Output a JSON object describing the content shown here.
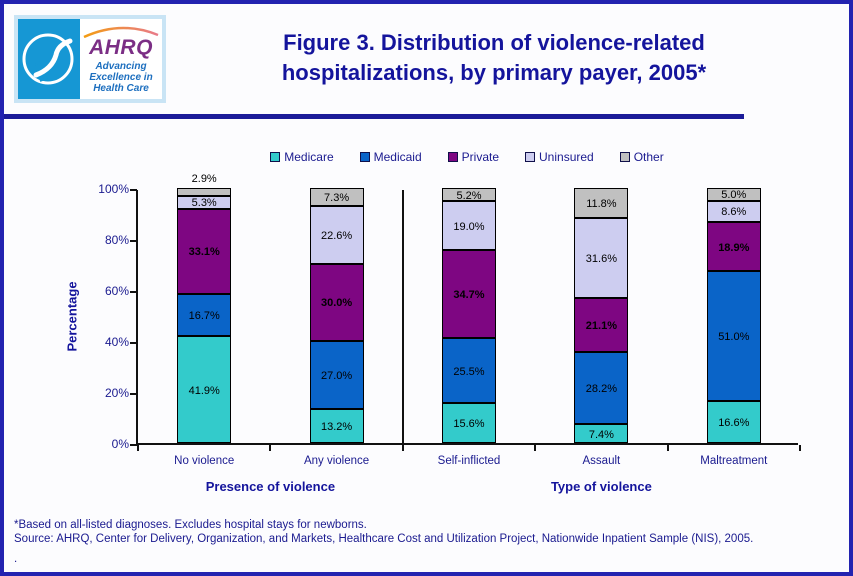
{
  "header": {
    "ahrq_acronym": "AHRQ",
    "ahrq_tagline": [
      "Advancing",
      "Excellence in",
      "Health Care"
    ],
    "title_lines": [
      "Figure 3. Distribution of violence-related",
      "hospitalizations, by primary payer, 2005*"
    ]
  },
  "chart_data": {
    "type": "bar",
    "stacked": true,
    "title": "",
    "xlabel": "",
    "ylabel": "Percentage",
    "ylim": [
      0,
      100
    ],
    "ytick_labels": [
      "0%",
      "20%",
      "40%",
      "60%",
      "80%",
      "100%"
    ],
    "grid": false,
    "legend_position": "top",
    "value_suffix": "%",
    "divider_after_category": 1,
    "categories": [
      "No violence",
      "Any violence",
      "Self-inflicted",
      "Assault",
      "Maltreatment"
    ],
    "axis_group_labels": [
      {
        "label": "Presence of violence",
        "categories": [
          "No violence",
          "Any violence"
        ]
      },
      {
        "label": "Type of violence",
        "categories": [
          "Self-inflicted",
          "Assault",
          "Maltreatment"
        ]
      }
    ],
    "series": [
      {
        "name": "Medicare",
        "color": "#33cbcb",
        "values": [
          41.9,
          13.2,
          15.6,
          7.4,
          16.6
        ]
      },
      {
        "name": "Medicaid",
        "color": "#0a64c8",
        "values": [
          16.7,
          27.0,
          25.5,
          28.2,
          51.0
        ]
      },
      {
        "name": "Private",
        "color": "#7e0682",
        "values": [
          33.1,
          30.0,
          34.7,
          21.1,
          18.9
        ],
        "label_bold": true
      },
      {
        "name": "Uninsured",
        "color": "#cdcdf0",
        "values": [
          5.3,
          22.6,
          19.0,
          31.6,
          8.6
        ]
      },
      {
        "name": "Other",
        "color": "#c0c0c0",
        "values": [
          2.9,
          7.3,
          5.2,
          11.8,
          5.0
        ]
      }
    ]
  },
  "footnotes": {
    "note": "*Based on all-listed diagnoses. Excludes hospital stays for newborns.",
    "source": "Source: AHRQ, Center for Delivery, Organization, and Markets, Healthcare Cost and Utilization Project, Nationwide Inpatient Sample (NIS), 2005.",
    "trailing": "."
  },
  "colors": {
    "navy_text": "#1a1a8f",
    "title_navy": "#14149c",
    "header_rule": "#1c1c99",
    "page_border": "#2323b0",
    "logo_blue": "#1697d4",
    "ahrq_purple": "#7b2e85"
  }
}
